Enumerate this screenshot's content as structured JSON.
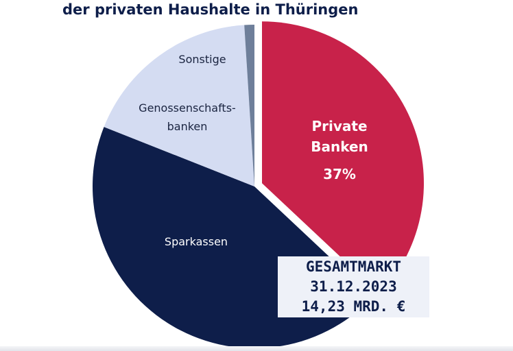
{
  "title": "der privaten Haushalte in Thüringen",
  "chart_data": {
    "type": "pie",
    "slices": [
      {
        "label": "Private Banken",
        "value": 37,
        "value_label": "37%",
        "color": "#c8224a",
        "exploded": true
      },
      {
        "label": "Sparkassen",
        "value": 44,
        "color": "#0e1e4a"
      },
      {
        "label": "Genossenschafts-banken",
        "value": 18,
        "color": "#d4dcf2"
      },
      {
        "label": "Sonstige",
        "value": 1,
        "color": "#6e7f9a"
      }
    ]
  },
  "labels": {
    "private_line1": "Private",
    "private_line2": "Banken",
    "private_value": "37%",
    "sparkassen": "Sparkassen",
    "genossen_line1": "Genossenschafts-",
    "genossen_line2": "banken",
    "sonstige": "Sonstige"
  },
  "total_box": {
    "line1": "GESAMTMARKT",
    "line2": "31.12.2023",
    "line3": "14,23 MRD. €"
  }
}
